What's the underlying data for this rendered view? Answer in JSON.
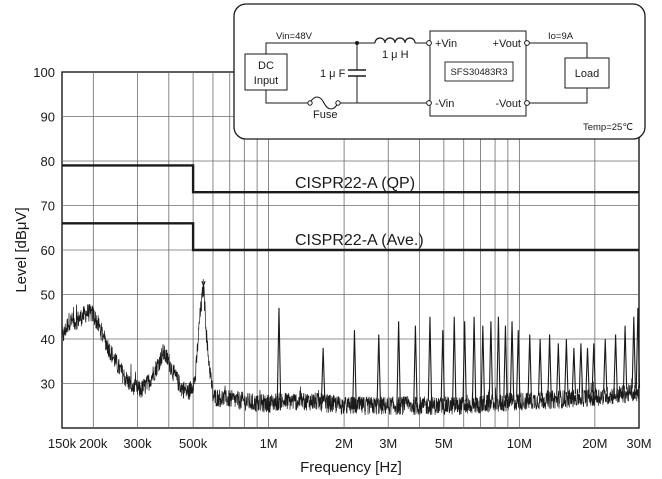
{
  "chart_data": {
    "type": "line",
    "title": "",
    "xlabel": "Frequency [Hz]",
    "ylabel": "Level  [dBμV]",
    "x_scale": "log",
    "xlim": [
      150000,
      30000000
    ],
    "ylim": [
      20,
      100
    ],
    "grid": true,
    "x_tick_labels": [
      {
        "label": "150k",
        "value": 150000
      },
      {
        "label": "200k",
        "value": 200000
      },
      {
        "label": "300k",
        "value": 300000
      },
      {
        "label": "500k",
        "value": 500000
      },
      {
        "label": "1M",
        "value": 1000000
      },
      {
        "label": "2M",
        "value": 2000000
      },
      {
        "label": "3M",
        "value": 3000000
      },
      {
        "label": "5M",
        "value": 5000000
      },
      {
        "label": "10M",
        "value": 10000000
      },
      {
        "label": "20M",
        "value": 20000000
      },
      {
        "label": "30M",
        "value": 30000000
      }
    ],
    "y_tick_labels": [
      {
        "label": "30",
        "value": 30
      },
      {
        "label": "40",
        "value": 40
      },
      {
        "label": "50",
        "value": 50
      },
      {
        "label": "60",
        "value": 60
      },
      {
        "label": "70",
        "value": 70
      },
      {
        "label": "80",
        "value": 80
      },
      {
        "label": "90",
        "value": 90
      },
      {
        "label": "100",
        "value": 100
      }
    ],
    "limit_lines": [
      {
        "name": "CISPR22-A (QP)",
        "points": [
          [
            150000,
            79
          ],
          [
            500000,
            79
          ],
          [
            500000,
            73
          ],
          [
            30000000,
            73
          ]
        ]
      },
      {
        "name": "CISPR22-A (Ave.)",
        "points": [
          [
            150000,
            66
          ],
          [
            500000,
            66
          ],
          [
            500000,
            60
          ],
          [
            30000000,
            60
          ]
        ]
      }
    ],
    "series": [
      {
        "points": [
          [
            150000,
            40
          ],
          [
            160000,
            44
          ],
          [
            170000,
            44
          ],
          [
            180000,
            45
          ],
          [
            190000,
            46
          ],
          [
            200000,
            45.5
          ],
          [
            210000,
            43
          ],
          [
            230000,
            38
          ],
          [
            250000,
            34
          ],
          [
            270000,
            31
          ],
          [
            290000,
            29
          ],
          [
            310000,
            28.5
          ],
          [
            330000,
            30
          ],
          [
            360000,
            34
          ],
          [
            380000,
            37
          ],
          [
            400000,
            35
          ],
          [
            420000,
            32
          ],
          [
            450000,
            29
          ],
          [
            480000,
            28
          ],
          [
            510000,
            31
          ],
          [
            530000,
            44
          ],
          [
            550000,
            52
          ],
          [
            570000,
            38
          ],
          [
            600000,
            27
          ],
          [
            700000,
            26.5
          ],
          [
            800000,
            26
          ],
          [
            900000,
            25.5
          ],
          [
            1000000,
            25.5
          ],
          [
            1100000,
            26
          ],
          [
            1500000,
            26
          ],
          [
            2000000,
            25
          ],
          [
            3000000,
            25
          ],
          [
            4000000,
            25
          ],
          [
            5000000,
            25
          ],
          [
            6000000,
            25
          ],
          [
            8000000,
            25.5
          ],
          [
            10000000,
            26
          ],
          [
            15000000,
            26.5
          ],
          [
            20000000,
            27
          ],
          [
            25000000,
            27.5
          ],
          [
            30000000,
            28
          ]
        ],
        "spikes": [
          [
            550000,
            52
          ],
          [
            1100000,
            47
          ],
          [
            1650000,
            38
          ],
          [
            2200000,
            42
          ],
          [
            2750000,
            41
          ],
          [
            3300000,
            44
          ],
          [
            3850000,
            43
          ],
          [
            4400000,
            45
          ],
          [
            4950000,
            42
          ],
          [
            5500000,
            45
          ],
          [
            6050000,
            44
          ],
          [
            6600000,
            45
          ],
          [
            7150000,
            43
          ],
          [
            7700000,
            44
          ],
          [
            8250000,
            45
          ],
          [
            8800000,
            43
          ],
          [
            9350000,
            44
          ],
          [
            9900000,
            42
          ],
          [
            11000000,
            41
          ],
          [
            12100000,
            40
          ],
          [
            13200000,
            41
          ],
          [
            14300000,
            39
          ],
          [
            15400000,
            40
          ],
          [
            16500000,
            38
          ],
          [
            17600000,
            39
          ],
          [
            18700000,
            38
          ],
          [
            19800000,
            39
          ],
          [
            22000000,
            40
          ],
          [
            24200000,
            41
          ],
          [
            26400000,
            43
          ],
          [
            28600000,
            45
          ],
          [
            29700000,
            47
          ]
        ]
      }
    ]
  },
  "circuit": {
    "vin_label": "Vin=48V",
    "source_label_1": "DC",
    "source_label_2": "Input",
    "inductor_label": "1 μ H",
    "capacitor_label": "1 μ F",
    "fuse_label": "Fuse",
    "module_label": "SFS30483R3",
    "pin_vin_pos": "+Vin",
    "pin_vin_neg": "-Vin",
    "pin_vout_pos": "+Vout",
    "pin_vout_neg": "-Vout",
    "io_label": "Io=9A",
    "load_label": "Load",
    "temp_label": "Temp=25℃"
  }
}
